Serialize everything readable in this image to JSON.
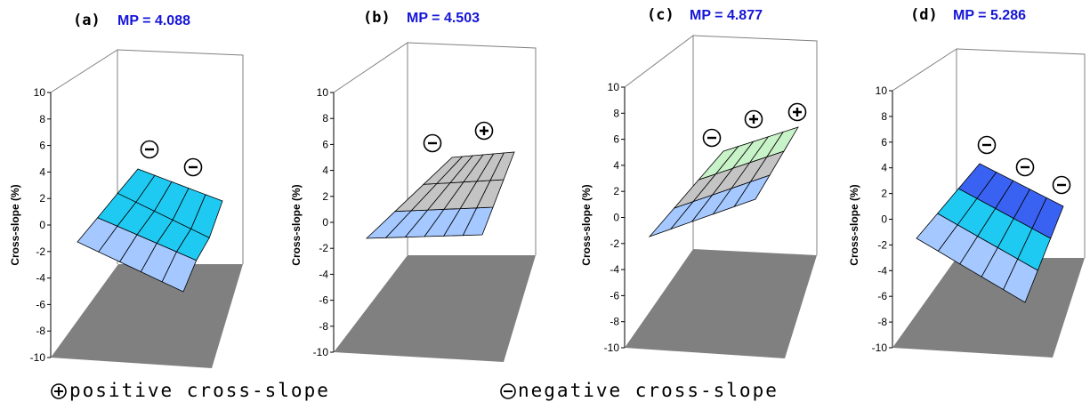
{
  "chart_data": [
    {
      "type": "surface",
      "panel_label": "(a)",
      "title": "MP = 4.088",
      "ylabel": "Cross-slope (%)",
      "zlim": [
        -10,
        10
      ],
      "ticks": [
        10,
        8,
        6,
        4,
        2,
        0,
        -2,
        -4,
        -6,
        -8,
        -10
      ],
      "grid": false,
      "surface_colors": [
        "#a4c8ff",
        "#1fcaf2",
        "#1fcaf2"
      ],
      "lane_signs": [
        "negative",
        "negative"
      ],
      "lane_sign_glyphs": [
        "⊖",
        "⊖"
      ]
    },
    {
      "type": "surface",
      "panel_label": "(b)",
      "title": "MP = 4.503",
      "ylabel": "Cross-slope (%)",
      "zlim": [
        -10,
        10
      ],
      "ticks": [
        10,
        8,
        6,
        4,
        2,
        0,
        -2,
        -4,
        -6,
        -8,
        -10
      ],
      "grid": false,
      "surface_colors": [
        "#a4c8ff",
        "#c4c4c4",
        "#c4c4c4"
      ],
      "lane_signs": [
        "negative",
        "positive"
      ],
      "lane_sign_glyphs": [
        "⊖",
        "⊕"
      ]
    },
    {
      "type": "surface",
      "panel_label": "(c)",
      "title": "MP = 4.877",
      "ylabel": "Cross-slope (%)",
      "zlim": [
        -10,
        10
      ],
      "ticks": [
        10,
        8,
        6,
        4,
        2,
        0,
        -2,
        -4,
        -6,
        -8,
        -10
      ],
      "grid": false,
      "surface_colors": [
        "#a4c8ff",
        "#c4c4c4",
        "#c8f2c8"
      ],
      "lane_signs": [
        "negative",
        "positive",
        "positive"
      ],
      "lane_sign_glyphs": [
        "⊖",
        "⊕",
        "⊕"
      ]
    },
    {
      "type": "surface",
      "panel_label": "(d)",
      "title": "MP = 5.286",
      "ylabel": "Cross-slope (%)",
      "zlim": [
        -10,
        10
      ],
      "ticks": [
        10,
        8,
        6,
        4,
        2,
        0,
        -2,
        -4,
        -6,
        -8,
        -10
      ],
      "grid": false,
      "surface_colors": [
        "#a4c8ff",
        "#1fcaf2",
        "#3a62f2"
      ],
      "lane_signs": [
        "negative",
        "negative",
        "negative"
      ],
      "lane_sign_glyphs": [
        "⊖",
        "⊖",
        "⊖"
      ]
    }
  ],
  "legend": {
    "positive_text": "positive cross-slope",
    "negative_text": "negative cross-slope",
    "positive_icon": "plus-circle-icon",
    "negative_icon": "minus-circle-icon"
  }
}
